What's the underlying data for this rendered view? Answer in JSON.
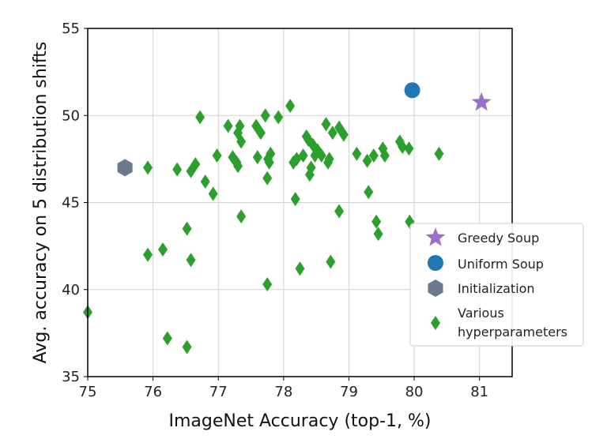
{
  "chart_data": {
    "type": "scatter",
    "title": "",
    "xlabel": "ImageNet Accuracy (top-1, %)",
    "ylabel": "Avg. accuracy on 5 distribution shifts",
    "xlim": [
      75,
      81.5
    ],
    "ylim": [
      35,
      55
    ],
    "xticks": [
      75,
      76,
      77,
      78,
      79,
      80,
      81
    ],
    "yticks": [
      35,
      40,
      45,
      50,
      55
    ],
    "grid": true,
    "legend_position": "lower-right",
    "colors": {
      "greedy": "#9b6fcc",
      "uniform": "#1f77b4",
      "init": "#6b7b8f",
      "various": "#2ca02c"
    },
    "series": [
      {
        "name": "Greedy Soup",
        "marker": "star",
        "color_key": "greedy",
        "points": [
          [
            81.03,
            50.75
          ]
        ]
      },
      {
        "name": "Uniform Soup",
        "marker": "circle",
        "color_key": "uniform",
        "points": [
          [
            79.97,
            51.45
          ]
        ]
      },
      {
        "name": "Initialization",
        "marker": "hexagon",
        "color_key": "init",
        "points": [
          [
            75.57,
            47.0
          ]
        ]
      },
      {
        "name": "Various hyperparameters",
        "legend_lines": [
          "Various",
          "hyperparameters"
        ],
        "marker": "diamond",
        "color_key": "various",
        "points": [
          [
            75.0,
            38.7
          ],
          [
            75.92,
            47.0
          ],
          [
            75.92,
            42.0
          ],
          [
            76.15,
            42.3
          ],
          [
            76.22,
            37.2
          ],
          [
            76.37,
            46.9
          ],
          [
            76.52,
            43.5
          ],
          [
            76.52,
            36.7
          ],
          [
            76.58,
            46.8
          ],
          [
            76.58,
            41.7
          ],
          [
            76.65,
            47.2
          ],
          [
            76.72,
            49.9
          ],
          [
            76.8,
            46.2
          ],
          [
            76.92,
            45.5
          ],
          [
            76.98,
            47.7
          ],
          [
            77.15,
            49.4
          ],
          [
            77.22,
            47.6
          ],
          [
            77.28,
            47.3
          ],
          [
            77.3,
            49.0
          ],
          [
            77.33,
            49.4
          ],
          [
            77.35,
            48.5
          ],
          [
            77.3,
            47.1
          ],
          [
            77.35,
            44.2
          ],
          [
            77.58,
            49.4
          ],
          [
            77.6,
            47.6
          ],
          [
            77.65,
            49.0
          ],
          [
            77.72,
            50.0
          ],
          [
            77.75,
            46.4
          ],
          [
            77.76,
            47.5
          ],
          [
            77.78,
            47.3
          ],
          [
            77.8,
            47.8
          ],
          [
            77.75,
            40.3
          ],
          [
            77.92,
            49.9
          ],
          [
            78.1,
            50.55
          ],
          [
            78.15,
            47.3
          ],
          [
            78.18,
            45.2
          ],
          [
            78.2,
            47.5
          ],
          [
            78.25,
            41.2
          ],
          [
            78.3,
            47.7
          ],
          [
            78.35,
            48.8
          ],
          [
            78.38,
            48.6
          ],
          [
            78.4,
            46.6
          ],
          [
            78.42,
            47.0
          ],
          [
            78.45,
            48.3
          ],
          [
            78.48,
            47.7
          ],
          [
            78.52,
            48.0
          ],
          [
            78.58,
            47.7
          ],
          [
            78.65,
            49.5
          ],
          [
            78.68,
            47.3
          ],
          [
            78.7,
            47.5
          ],
          [
            78.72,
            41.6
          ],
          [
            78.75,
            49.0
          ],
          [
            78.85,
            49.3
          ],
          [
            78.85,
            44.5
          ],
          [
            78.92,
            48.9
          ],
          [
            79.12,
            47.8
          ],
          [
            79.28,
            47.4
          ],
          [
            79.3,
            45.6
          ],
          [
            79.38,
            47.7
          ],
          [
            79.42,
            43.9
          ],
          [
            79.45,
            43.2
          ],
          [
            79.52,
            48.1
          ],
          [
            79.55,
            47.7
          ],
          [
            79.78,
            48.5
          ],
          [
            79.82,
            48.2
          ],
          [
            79.92,
            48.1
          ],
          [
            79.93,
            43.9
          ],
          [
            80.38,
            47.8
          ]
        ]
      }
    ]
  }
}
